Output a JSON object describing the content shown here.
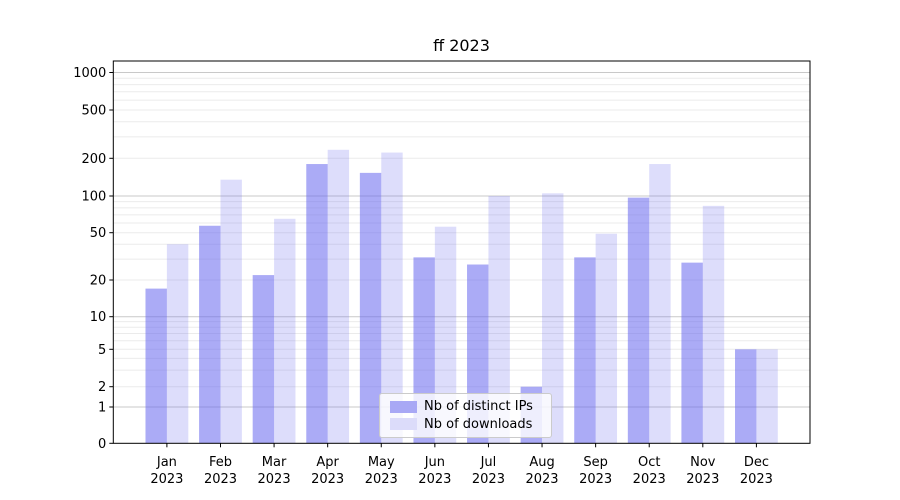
{
  "chart_data": {
    "type": "bar",
    "title": "ff 2023",
    "categories": [
      "Jan 2023",
      "Feb 2023",
      "Mar 2023",
      "Apr 2023",
      "May 2023",
      "Jun 2023",
      "Jul 2023",
      "Aug 2023",
      "Sep 2023",
      "Oct 2023",
      "Nov 2023",
      "Dec 2023"
    ],
    "series": [
      {
        "name": "Nb of distinct IPs",
        "values": [
          17,
          57,
          22,
          180,
          153,
          31,
          27,
          2,
          31,
          97,
          28,
          5
        ]
      },
      {
        "name": "Nb of downloads",
        "values": [
          40,
          135,
          65,
          235,
          223,
          56,
          100,
          105,
          49,
          180,
          83,
          5
        ]
      }
    ],
    "yscale": "symlog",
    "yticks": [
      0,
      1,
      2,
      5,
      10,
      20,
      50,
      100,
      200,
      500,
      1000
    ],
    "ylim": [
      0,
      1250
    ],
    "xlabel": "",
    "ylabel": "",
    "grid": "on",
    "legend_position": "lower center",
    "colors": {
      "bar_distinct_ips": "rgba(102,102,238,0.55)",
      "bar_downloads": "rgba(102,102,238,0.22)",
      "legend_swatch_distinct_ips": "#a8a8f5",
      "legend_swatch_downloads": "#dcdcfa",
      "grid_major": "#c9c9c9",
      "grid_minor": "#ebebeb",
      "axis": "#000000",
      "text": "#000000"
    }
  }
}
